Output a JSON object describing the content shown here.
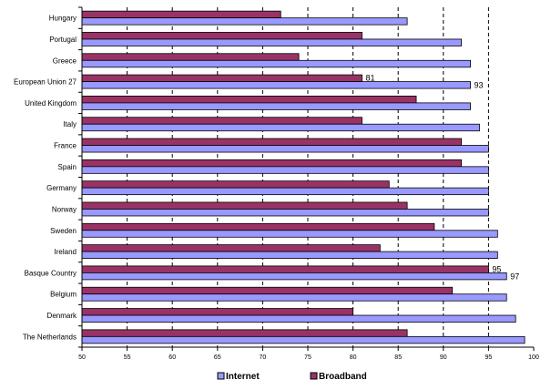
{
  "chart_data": {
    "type": "bar",
    "orientation": "horizontal",
    "title": "",
    "xlabel": "",
    "ylabel": "",
    "xlim": [
      50,
      100
    ],
    "x_ticks": [
      50,
      55,
      60,
      65,
      70,
      75,
      80,
      85,
      90,
      95,
      100
    ],
    "x_tick_labels": [
      "50",
      "55",
      "60",
      "65",
      "70",
      "75",
      "80",
      "85",
      "90",
      "95",
      "100"
    ],
    "grid": "vertical dashed",
    "legend_position": "bottom",
    "categories": [
      "Hungary",
      "Portugal",
      "Greece",
      "European Union 27",
      "United Kingdom",
      "Italy",
      "France",
      "Spain",
      "Germany",
      "Norway",
      "Sweden",
      "Ireland",
      "Basque Country",
      "Belgium",
      "Denmark",
      "The Netherlands"
    ],
    "series": [
      {
        "name": "Broadband",
        "color": "#993366",
        "values": [
          72,
          81,
          74,
          81,
          87,
          81,
          92,
          92,
          84,
          86,
          89,
          83,
          95,
          91,
          80,
          86
        ]
      },
      {
        "name": "Internet",
        "color": "#9999FF",
        "values": [
          86,
          92,
          93,
          93,
          93,
          94,
          95,
          95,
          95,
          95,
          96,
          96,
          97,
          97,
          98,
          99
        ]
      }
    ],
    "data_labels": [
      {
        "category": "European Union 27",
        "series": "Broadband",
        "text": "81"
      },
      {
        "category": "European Union 27",
        "series": "Internet",
        "text": "93"
      },
      {
        "category": "Basque Country",
        "series": "Broadband",
        "text": "95"
      },
      {
        "category": "Basque Country",
        "series": "Internet",
        "text": "97"
      }
    ]
  },
  "legend": {
    "internet_label": "Internet",
    "broadband_label": "Broadband"
  }
}
